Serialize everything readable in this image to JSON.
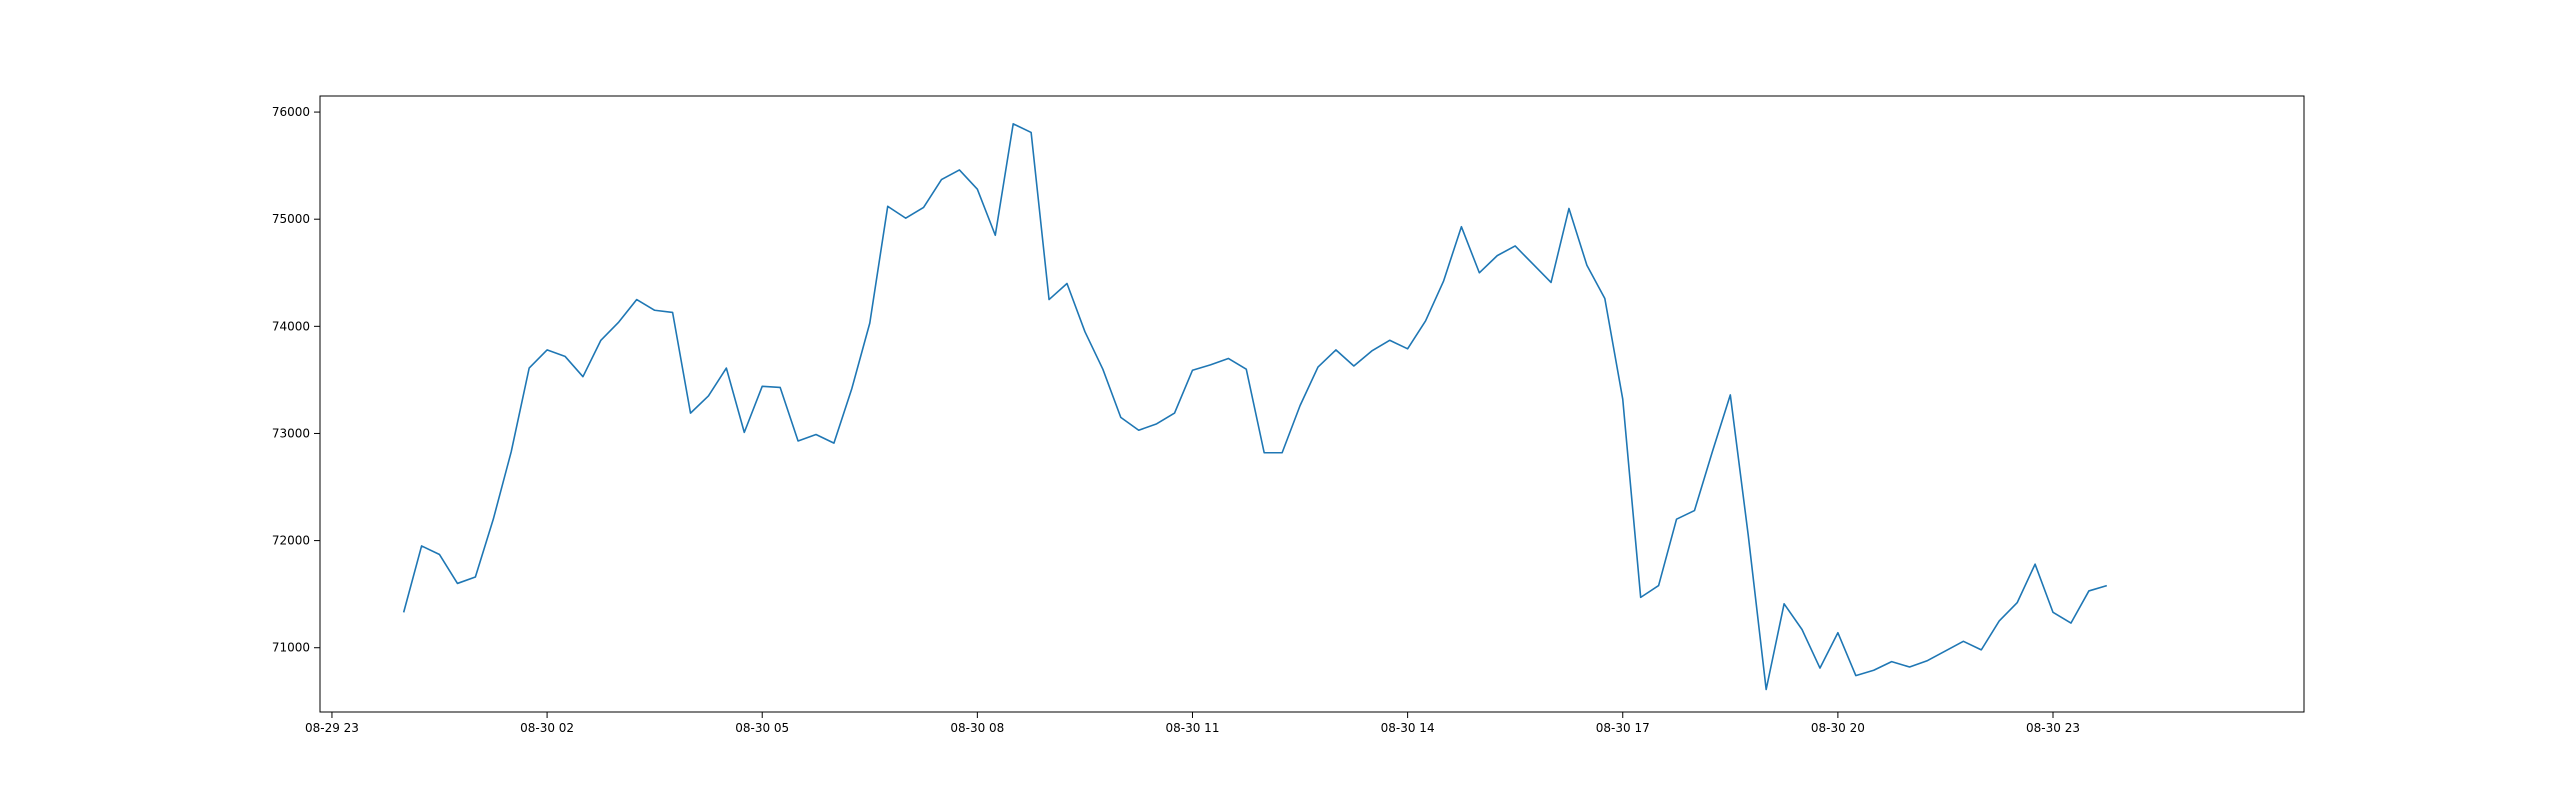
{
  "chart_data": {
    "type": "line",
    "title": "",
    "xlabel": "",
    "ylabel": "",
    "grid": false,
    "legend": "none",
    "line_color": "#1f77b4",
    "x_start": "08-30 00:00",
    "x_step_minutes": 15,
    "xlim": [
      "08-29 22:50",
      "08-31 02:30"
    ],
    "ylim": [
      70400,
      76150
    ],
    "x_ticks": [
      {
        "label": "08-29 23",
        "hour": 23
      },
      {
        "label": "08-30 02",
        "hour": 26
      },
      {
        "label": "08-30 05",
        "hour": 29
      },
      {
        "label": "08-30 08",
        "hour": 32
      },
      {
        "label": "08-30 11",
        "hour": 35
      },
      {
        "label": "08-30 14",
        "hour": 38
      },
      {
        "label": "08-30 17",
        "hour": 41
      },
      {
        "label": "08-30 20",
        "hour": 44
      },
      {
        "label": "08-30 23",
        "hour": 47
      }
    ],
    "y_ticks": [
      71000,
      72000,
      73000,
      74000,
      75000,
      76000
    ],
    "values": [
      71330,
      71950,
      71870,
      71600,
      71660,
      72200,
      72830,
      73610,
      73780,
      73720,
      73530,
      73870,
      74040,
      74250,
      74150,
      74130,
      73190,
      73350,
      73610,
      73010,
      73440,
      73430,
      72930,
      72990,
      72910,
      73420,
      74030,
      75120,
      75010,
      75110,
      75370,
      75460,
      75280,
      74850,
      75890,
      75810,
      74250,
      74400,
      73950,
      73600,
      73150,
      73030,
      73090,
      73190,
      73590,
      73640,
      73700,
      73600,
      72820,
      72820,
      73260,
      73620,
      73780,
      73630,
      73770,
      73870,
      73790,
      74050,
      74420,
      74930,
      74500,
      74660,
      74750,
      74580,
      74410,
      75100,
      74570,
      74260,
      73320,
      71470,
      71580,
      72200,
      72280,
      72830,
      73360,
      72050,
      70610,
      71410,
      71170,
      70810,
      71140,
      70740,
      70790,
      70870,
      70820,
      70880,
      70970,
      71060,
      70980,
      71250,
      71420,
      71780,
      71330,
      71230,
      71530,
      71580
    ]
  }
}
